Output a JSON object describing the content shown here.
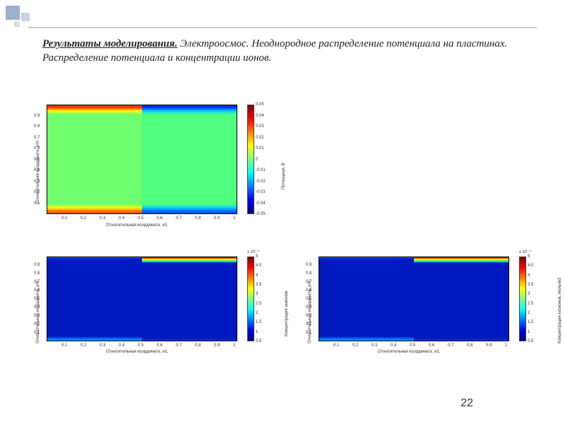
{
  "decor": {
    "line_color": "#c8c8c8",
    "squares": [
      "#9db0cc",
      "#c8d2e2",
      "#d8dee8"
    ]
  },
  "title": {
    "lead": "Результаты моделирования.",
    "rest": " Электроосмос. Неоднородное распределение потенциала на пластинах. Распределение потенциала и концентрации ионов."
  },
  "page_number": "22",
  "jet_colormap": [
    "#00007f",
    "#0000ff",
    "#007fff",
    "#00ffff",
    "#7fff7f",
    "#ffff00",
    "#ff7f00",
    "#ff0000",
    "#7f0000"
  ],
  "chart_top": {
    "type": "heatmap",
    "xlabel": "Относительная координата, x/L",
    "ylabel": "Относительная координата, y/H",
    "xticks": [
      "0.1",
      "0.2",
      "0.3",
      "0.4",
      "0.5",
      "0.6",
      "0.7",
      "0.8",
      "0.9",
      "1"
    ],
    "yticks": [
      "0.1",
      "0.2",
      "0.3",
      "0.4",
      "0.5",
      "0.6",
      "0.7",
      "0.8",
      "0.9"
    ],
    "colorbar": {
      "label": "Потенциал, В",
      "ticks": [
        "0.05",
        "0.04",
        "0.03",
        "0.02",
        "0.01",
        "0",
        "-0.01",
        "-0.02",
        "-0.03",
        "-0.04",
        "-0.05"
      ]
    },
    "region_colors": {
      "bulk_left": "#6fff6f",
      "bulk_right": "#50ff80",
      "top_left": "#ff3000",
      "top_right": "#0030ff",
      "bot_left": "#ff6000",
      "bot_right": "#0060ff",
      "grad_left_top": "linear-gradient(to bottom,#ff3000,#ffff00,#6fff6f)",
      "grad_left_bot": "linear-gradient(to top,#ff6000,#ffff00,#6fff6f)",
      "grad_right_top": "linear-gradient(to bottom,#0030ff,#00d0ff,#50ff80)",
      "grad_right_bot": "linear-gradient(to top,#0060ff,#00d0ff,#50ff80)"
    },
    "box": {
      "bg": "#ffffff",
      "border": "#000000"
    }
  },
  "chart_bl": {
    "type": "heatmap",
    "xlabel": "Относительная координата, x/L",
    "ylabel": "Относительная координата, y/H",
    "xticks": [
      "0.1",
      "0.2",
      "0.3",
      "0.4",
      "0.5",
      "0.6",
      "0.7",
      "0.8",
      "0.9",
      "1"
    ],
    "yticks": [
      "0.1",
      "0.2",
      "0.3",
      "0.4",
      "0.5",
      "0.6",
      "0.7",
      "0.8",
      "0.9"
    ],
    "colorbar": {
      "label": "Концентрация анионов",
      "exp": "x 10⁻⁴",
      "ticks": [
        "5",
        "4.5",
        "4",
        "3.5",
        "3",
        "2.5",
        "2",
        "1.5",
        "1",
        "0.5"
      ]
    },
    "region_colors": {
      "bulk": "#0018c0",
      "top_right": "linear-gradient(to bottom,#a00000,#ff6000,#ffff00,#50ff50,#00d0ff,#0018c0)",
      "bot_left": "linear-gradient(to top,#00b0ff,#0060ff,#0018c0)"
    }
  },
  "chart_br": {
    "type": "heatmap",
    "xlabel": "Относительная координата, x/L",
    "ylabel": "Относительная координата, y/H",
    "xticks": [
      "0.1",
      "0.2",
      "0.3",
      "0.4",
      "0.5",
      "0.6",
      "0.7",
      "0.8",
      "0.9",
      "1"
    ],
    "yticks": [
      "0.1",
      "0.2",
      "0.3",
      "0.4",
      "0.5",
      "0.6",
      "0.7",
      "0.8",
      "0.9"
    ],
    "colorbar": {
      "label": "Концентрация катионов, моль/м3",
      "exp": "x 10⁻⁴",
      "ticks": [
        "5",
        "4.5",
        "4",
        "3.5",
        "3",
        "2.5",
        "2",
        "1.5",
        "1",
        "0.5"
      ]
    },
    "region_colors": {
      "bulk": "#0018c0",
      "top_right": "linear-gradient(to bottom,#a00000,#ff6000,#ffff00,#50ff50,#00d0ff,#0018c0)",
      "bot_left": "linear-gradient(to top,#00b0ff,#0060ff,#0018c0)"
    }
  }
}
